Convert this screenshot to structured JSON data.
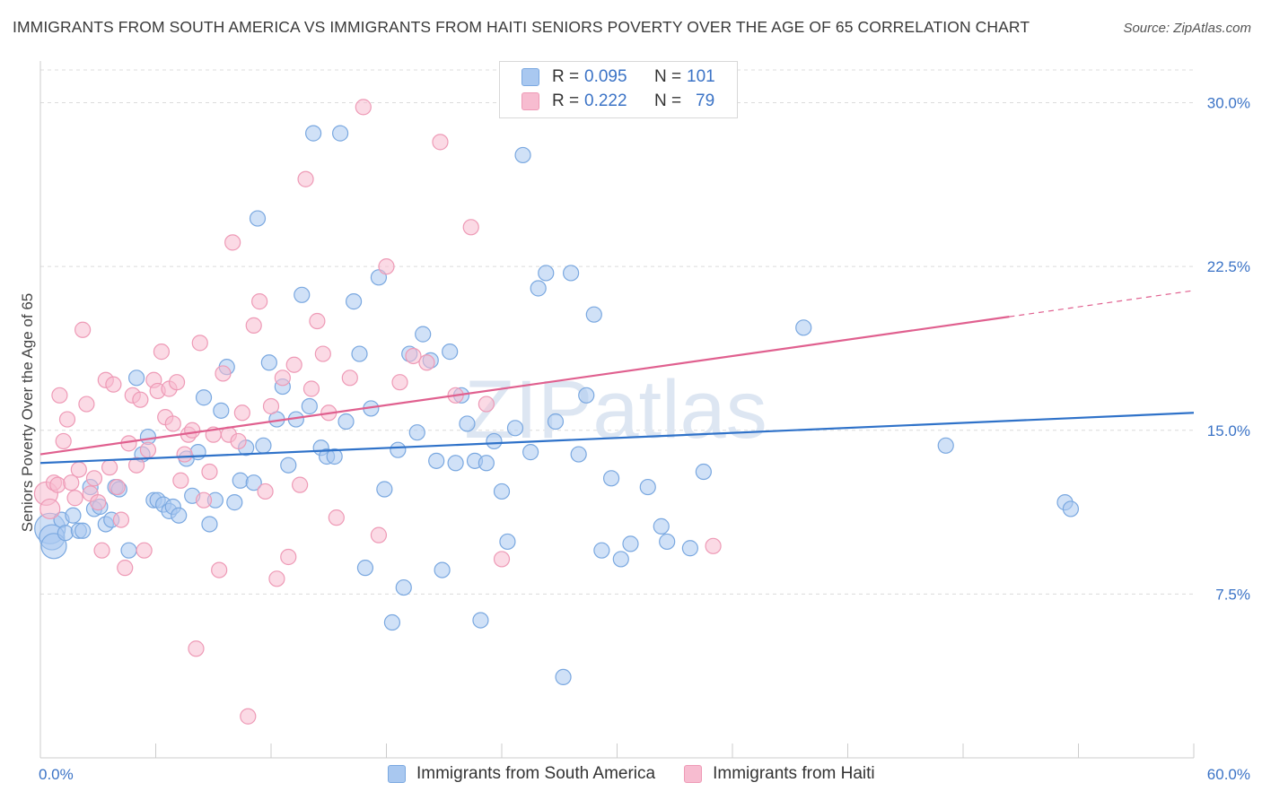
{
  "title": "IMMIGRANTS FROM SOUTH AMERICA VS IMMIGRANTS FROM HAITI SENIORS POVERTY OVER THE AGE OF 65 CORRELATION CHART",
  "source": "Source: ZipAtlas.com",
  "watermark": "ZIPatlas",
  "legend": {
    "rows": [
      {
        "r_label": "R =",
        "r_value": "0.095",
        "n_label": "N =",
        "n_value": "101"
      },
      {
        "r_label": "R =",
        "r_value": "0.222",
        "n_label": "N =",
        "n_value": "79"
      }
    ]
  },
  "colors": {
    "blue_fill": "#a9c8f0",
    "blue_stroke": "#7aa8e0",
    "blue_line": "#2f72c9",
    "pink_fill": "#f7bcd0",
    "pink_stroke": "#ee9ab6",
    "pink_line": "#e0608f",
    "axis_text": "#3b73c6",
    "grid": "#dcdcdc"
  },
  "chart_data": {
    "type": "scatter",
    "title": "IMMIGRANTS FROM SOUTH AMERICA VS IMMIGRANTS FROM HAITI SENIORS POVERTY OVER THE AGE OF 65 CORRELATION CHART",
    "xlabel": "",
    "ylabel": "Seniors Poverty Over the Age of 65",
    "xlim": [
      0,
      60
    ],
    "ylim": [
      0,
      31.5
    ],
    "x_tick_labels": [
      "0.0%",
      "60.0%"
    ],
    "y_ticks": [
      7.5,
      15.0,
      22.5,
      30.0
    ],
    "y_tick_labels": [
      "7.5%",
      "15.0%",
      "22.5%",
      "30.0%"
    ],
    "grid": "horizontal dashed",
    "legend_position": "top-center",
    "series": [
      {
        "name": "Immigrants from South America",
        "color": "#a9c8f0",
        "R": 0.095,
        "N": 101,
        "trend": {
          "x": [
            0,
            60
          ],
          "y": [
            13.5,
            15.8
          ]
        },
        "points": [
          [
            0.5,
            10.5
          ],
          [
            0.6,
            10.1
          ],
          [
            0.7,
            9.7
          ],
          [
            1.1,
            10.9
          ],
          [
            1.3,
            10.3
          ],
          [
            1.7,
            11.1
          ],
          [
            2.0,
            10.4
          ],
          [
            2.2,
            10.4
          ],
          [
            2.6,
            12.4
          ],
          [
            2.8,
            11.4
          ],
          [
            3.1,
            11.5
          ],
          [
            3.4,
            10.7
          ],
          [
            3.7,
            10.9
          ],
          [
            3.9,
            12.4
          ],
          [
            4.1,
            12.3
          ],
          [
            4.6,
            9.5
          ],
          [
            5.0,
            17.4
          ],
          [
            5.3,
            13.9
          ],
          [
            5.6,
            14.7
          ],
          [
            5.9,
            11.8
          ],
          [
            6.1,
            11.8
          ],
          [
            6.4,
            11.6
          ],
          [
            6.7,
            11.3
          ],
          [
            6.9,
            11.5
          ],
          [
            7.2,
            11.1
          ],
          [
            7.6,
            13.7
          ],
          [
            7.9,
            12.0
          ],
          [
            8.2,
            14.0
          ],
          [
            8.5,
            16.5
          ],
          [
            8.8,
            10.7
          ],
          [
            9.1,
            11.8
          ],
          [
            9.4,
            15.9
          ],
          [
            9.7,
            17.9
          ],
          [
            10.1,
            11.7
          ],
          [
            10.4,
            12.7
          ],
          [
            10.7,
            14.2
          ],
          [
            11.1,
            12.6
          ],
          [
            11.3,
            24.7
          ],
          [
            11.6,
            14.3
          ],
          [
            11.9,
            18.1
          ],
          [
            12.3,
            15.5
          ],
          [
            12.6,
            17.0
          ],
          [
            12.9,
            13.4
          ],
          [
            13.3,
            15.5
          ],
          [
            13.6,
            21.2
          ],
          [
            14.0,
            16.1
          ],
          [
            14.2,
            28.6
          ],
          [
            14.6,
            14.2
          ],
          [
            14.9,
            13.8
          ],
          [
            15.3,
            13.8
          ],
          [
            15.6,
            28.6
          ],
          [
            15.9,
            15.4
          ],
          [
            16.3,
            20.9
          ],
          [
            16.6,
            18.5
          ],
          [
            16.9,
            8.7
          ],
          [
            17.2,
            16.0
          ],
          [
            17.6,
            22.0
          ],
          [
            17.9,
            12.3
          ],
          [
            18.3,
            6.2
          ],
          [
            18.6,
            14.1
          ],
          [
            18.9,
            7.8
          ],
          [
            19.2,
            18.5
          ],
          [
            19.6,
            14.9
          ],
          [
            19.9,
            19.4
          ],
          [
            20.3,
            18.2
          ],
          [
            20.6,
            13.6
          ],
          [
            20.9,
            8.6
          ],
          [
            21.3,
            18.6
          ],
          [
            21.6,
            13.5
          ],
          [
            21.9,
            16.6
          ],
          [
            22.2,
            15.3
          ],
          [
            22.6,
            13.6
          ],
          [
            22.9,
            6.3
          ],
          [
            23.2,
            13.5
          ],
          [
            23.6,
            14.5
          ],
          [
            24.0,
            12.2
          ],
          [
            24.3,
            9.9
          ],
          [
            24.7,
            15.1
          ],
          [
            25.1,
            27.6
          ],
          [
            25.5,
            14.0
          ],
          [
            25.9,
            21.5
          ],
          [
            26.3,
            22.2
          ],
          [
            26.8,
            15.4
          ],
          [
            27.2,
            3.7
          ],
          [
            27.6,
            22.2
          ],
          [
            28.0,
            13.9
          ],
          [
            28.4,
            16.6
          ],
          [
            28.8,
            20.3
          ],
          [
            29.2,
            9.5
          ],
          [
            29.7,
            12.8
          ],
          [
            30.2,
            9.1
          ],
          [
            30.7,
            9.8
          ],
          [
            31.6,
            12.4
          ],
          [
            32.3,
            10.6
          ],
          [
            32.6,
            9.9
          ],
          [
            33.8,
            9.6
          ],
          [
            34.5,
            13.1
          ],
          [
            39.7,
            19.7
          ],
          [
            47.1,
            14.3
          ],
          [
            53.3,
            11.7
          ],
          [
            53.6,
            11.4
          ]
        ]
      },
      {
        "name": "Immigrants from Haiti",
        "color": "#f7bcd0",
        "R": 0.222,
        "N": 79,
        "trend": {
          "x": [
            0,
            50.4
          ],
          "y": [
            13.9,
            20.2
          ]
        },
        "trend_dashed": {
          "x": [
            50.4,
            60
          ],
          "y": [
            20.2,
            21.4
          ]
        },
        "points": [
          [
            0.3,
            12.1
          ],
          [
            0.5,
            11.4
          ],
          [
            0.7,
            12.6
          ],
          [
            0.9,
            12.5
          ],
          [
            1.0,
            16.6
          ],
          [
            1.2,
            14.5
          ],
          [
            1.4,
            15.5
          ],
          [
            1.6,
            12.6
          ],
          [
            1.8,
            11.9
          ],
          [
            2.0,
            13.2
          ],
          [
            2.2,
            19.6
          ],
          [
            2.4,
            16.2
          ],
          [
            2.6,
            12.1
          ],
          [
            2.8,
            12.8
          ],
          [
            3.0,
            11.7
          ],
          [
            3.2,
            9.5
          ],
          [
            3.4,
            17.3
          ],
          [
            3.6,
            13.3
          ],
          [
            3.8,
            17.1
          ],
          [
            4.0,
            12.4
          ],
          [
            4.2,
            10.9
          ],
          [
            4.4,
            8.7
          ],
          [
            4.6,
            14.4
          ],
          [
            4.8,
            16.6
          ],
          [
            5.0,
            13.4
          ],
          [
            5.2,
            16.4
          ],
          [
            5.4,
            9.5
          ],
          [
            5.6,
            14.1
          ],
          [
            5.9,
            17.3
          ],
          [
            6.1,
            16.8
          ],
          [
            6.3,
            18.6
          ],
          [
            6.5,
            15.6
          ],
          [
            6.7,
            16.9
          ],
          [
            6.9,
            15.3
          ],
          [
            7.1,
            17.2
          ],
          [
            7.3,
            12.7
          ],
          [
            7.5,
            13.9
          ],
          [
            7.7,
            14.8
          ],
          [
            7.9,
            15.0
          ],
          [
            8.1,
            5.0
          ],
          [
            8.3,
            19.0
          ],
          [
            8.5,
            11.8
          ],
          [
            8.8,
            13.1
          ],
          [
            9.0,
            14.8
          ],
          [
            9.3,
            8.6
          ],
          [
            9.5,
            17.6
          ],
          [
            9.8,
            14.8
          ],
          [
            10.0,
            23.6
          ],
          [
            10.3,
            14.5
          ],
          [
            10.5,
            15.8
          ],
          [
            10.8,
            1.9
          ],
          [
            11.1,
            19.8
          ],
          [
            11.4,
            20.9
          ],
          [
            11.7,
            12.2
          ],
          [
            12.0,
            16.1
          ],
          [
            12.3,
            8.2
          ],
          [
            12.6,
            17.4
          ],
          [
            12.9,
            9.2
          ],
          [
            13.2,
            18.0
          ],
          [
            13.5,
            12.5
          ],
          [
            13.8,
            26.5
          ],
          [
            14.1,
            16.9
          ],
          [
            14.4,
            20.0
          ],
          [
            14.7,
            18.5
          ],
          [
            15.0,
            15.8
          ],
          [
            15.4,
            11.0
          ],
          [
            16.1,
            17.4
          ],
          [
            16.8,
            29.8
          ],
          [
            17.6,
            10.2
          ],
          [
            18.0,
            22.5
          ],
          [
            18.7,
            17.2
          ],
          [
            19.4,
            18.4
          ],
          [
            20.1,
            18.1
          ],
          [
            20.8,
            28.2
          ],
          [
            21.6,
            16.6
          ],
          [
            22.4,
            24.3
          ],
          [
            23.2,
            16.2
          ],
          [
            24.0,
            9.1
          ],
          [
            35.0,
            9.7
          ]
        ]
      }
    ]
  },
  "bottom_legend": [
    "Immigrants from South America",
    "Immigrants from Haiti"
  ]
}
